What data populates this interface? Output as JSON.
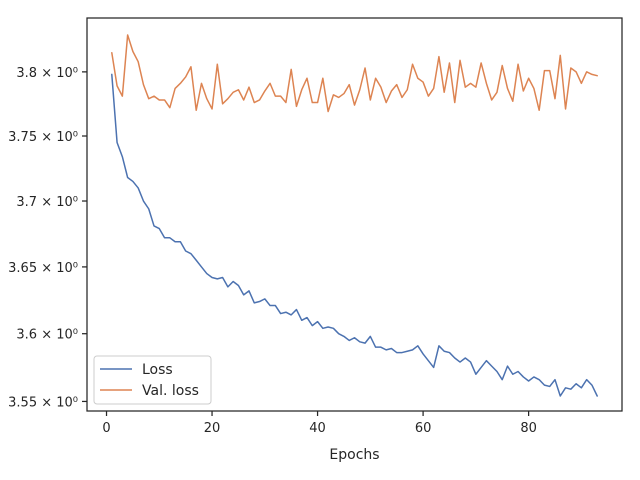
{
  "chart_data": {
    "type": "line",
    "title": "",
    "xlabel": "Epochs",
    "ylabel": "",
    "xlim": [
      -3.7,
      97.7
    ],
    "ylim": [
      3.543,
      3.8425
    ],
    "y_scale": "log",
    "grid": false,
    "legend_position": "lower-left",
    "x_ticks": [
      0,
      20,
      40,
      60,
      80
    ],
    "x_tick_labels": [
      "0",
      "20",
      "40",
      "60",
      "80"
    ],
    "y_ticks": [
      3.55,
      3.6,
      3.65,
      3.7,
      3.75,
      3.8
    ],
    "y_tick_labels": [
      "3.55 × 10⁰",
      "3.6 × 10⁰",
      "3.65 × 10⁰",
      "3.7 × 10⁰",
      "3.75 × 10⁰",
      "3.8 × 10⁰"
    ],
    "x": [
      1,
      2,
      3,
      4,
      5,
      6,
      7,
      8,
      9,
      10,
      11,
      12,
      13,
      14,
      15,
      16,
      17,
      18,
      19,
      20,
      21,
      22,
      23,
      24,
      25,
      26,
      27,
      28,
      29,
      30,
      31,
      32,
      33,
      34,
      35,
      36,
      37,
      38,
      39,
      40,
      41,
      42,
      43,
      44,
      45,
      46,
      47,
      48,
      49,
      50,
      51,
      52,
      53,
      54,
      55,
      56,
      57,
      58,
      59,
      60,
      61,
      62,
      63,
      64,
      65,
      66,
      67,
      68,
      69,
      70,
      71,
      72,
      73,
      74,
      75,
      76,
      77,
      78,
      79,
      80,
      81,
      82,
      83,
      84,
      85,
      86,
      87,
      88,
      89,
      90,
      91,
      92,
      93
    ],
    "series": [
      {
        "name": "Loss",
        "color": "#4c72b0",
        "values": [
          3.798,
          3.745,
          3.734,
          3.718,
          3.715,
          3.71,
          3.7,
          3.694,
          3.681,
          3.679,
          3.672,
          3.672,
          3.669,
          3.669,
          3.662,
          3.66,
          3.655,
          3.65,
          3.645,
          3.642,
          3.641,
          3.642,
          3.635,
          3.639,
          3.636,
          3.629,
          3.632,
          3.623,
          3.624,
          3.626,
          3.621,
          3.621,
          3.615,
          3.616,
          3.614,
          3.618,
          3.61,
          3.612,
          3.606,
          3.609,
          3.604,
          3.605,
          3.604,
          3.6,
          3.598,
          3.595,
          3.597,
          3.594,
          3.593,
          3.598,
          3.59,
          3.59,
          3.588,
          3.589,
          3.586,
          3.586,
          3.587,
          3.588,
          3.591,
          3.585,
          3.58,
          3.575,
          3.591,
          3.587,
          3.586,
          3.582,
          3.579,
          3.582,
          3.579,
          3.57,
          3.575,
          3.58,
          3.576,
          3.572,
          3.566,
          3.576,
          3.57,
          3.572,
          3.568,
          3.565,
          3.568,
          3.566,
          3.562,
          3.561,
          3.566,
          3.554,
          3.56,
          3.559,
          3.563,
          3.56,
          3.566,
          3.562,
          3.554
        ]
      },
      {
        "name": "Val. loss",
        "color": "#dd8452",
        "values": [
          3.815,
          3.789,
          3.781,
          3.829,
          3.816,
          3.808,
          3.79,
          3.779,
          3.781,
          3.778,
          3.778,
          3.772,
          3.787,
          3.791,
          3.796,
          3.804,
          3.77,
          3.791,
          3.779,
          3.771,
          3.806,
          3.775,
          3.779,
          3.784,
          3.786,
          3.778,
          3.788,
          3.776,
          3.778,
          3.785,
          3.791,
          3.781,
          3.781,
          3.776,
          3.802,
          3.773,
          3.786,
          3.795,
          3.776,
          3.776,
          3.795,
          3.769,
          3.782,
          3.78,
          3.783,
          3.79,
          3.774,
          3.786,
          3.803,
          3.778,
          3.795,
          3.788,
          3.776,
          3.785,
          3.79,
          3.78,
          3.786,
          3.806,
          3.795,
          3.792,
          3.781,
          3.787,
          3.812,
          3.784,
          3.807,
          3.776,
          3.809,
          3.788,
          3.791,
          3.788,
          3.807,
          3.791,
          3.778,
          3.784,
          3.805,
          3.787,
          3.777,
          3.806,
          3.785,
          3.795,
          3.787,
          3.77,
          3.801,
          3.801,
          3.779,
          3.813,
          3.771,
          3.803,
          3.8,
          3.791,
          3.8,
          3.798,
          3.797
        ]
      }
    ]
  }
}
